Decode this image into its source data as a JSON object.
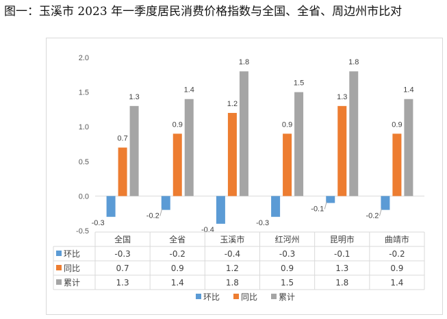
{
  "page": {
    "title": "图一：玉溪市 2023 年一季度居民消费价格指数与全国、全省、周边州市比对"
  },
  "colors": {
    "环比": "#5b9bd5",
    "同比": "#ed7d31",
    "累计": "#a5a5a5",
    "grid": "#d9d9d9",
    "text": "#595959"
  },
  "chart_data": {
    "type": "bar",
    "title": "",
    "xlabel": "",
    "ylabel": "",
    "categories": [
      "全国",
      "全省",
      "玉溪市",
      "红河州",
      "昆明市",
      "曲靖市"
    ],
    "series": [
      {
        "name": "环比",
        "values": [
          -0.3,
          -0.2,
          -0.4,
          -0.3,
          -0.1,
          -0.2
        ]
      },
      {
        "name": "同比",
        "values": [
          0.7,
          0.9,
          1.2,
          0.9,
          1.3,
          0.9
        ]
      },
      {
        "name": "累计",
        "values": [
          1.3,
          1.4,
          1.8,
          1.5,
          1.8,
          1.4
        ]
      }
    ],
    "data_labels": [
      [
        "-0.3",
        "-0.2",
        "-0.4",
        "-0.3",
        "-0.1",
        "-0.2"
      ],
      [
        "0.7",
        "0.9",
        "1.2",
        "0.9",
        "1.3",
        "0.9"
      ],
      [
        "1.3",
        "1.4",
        "1.8",
        "1.5",
        "1.8",
        "1.4"
      ]
    ],
    "ylim": [
      -0.5,
      2.0
    ],
    "yticks": [
      "-0.5",
      "0.0",
      "0.5",
      "1.0",
      "1.5",
      "2.0"
    ],
    "grid": false,
    "data_table": true,
    "legend": {
      "position": "bottom",
      "entries": [
        "环比",
        "同比",
        "累计"
      ]
    }
  }
}
